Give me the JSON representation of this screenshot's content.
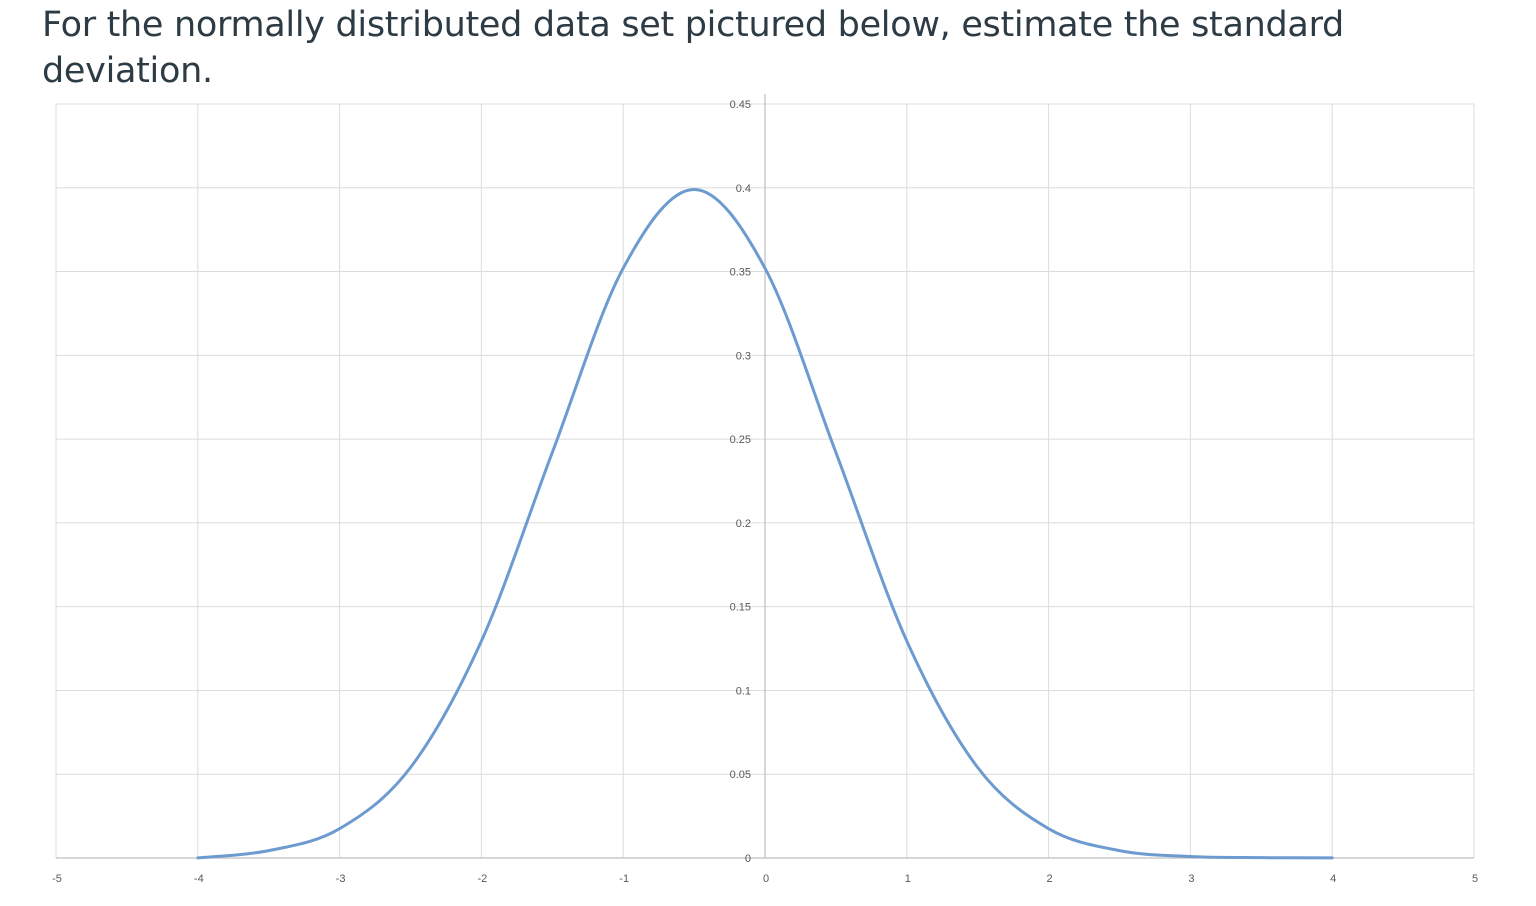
{
  "question": {
    "text": "For the normally distributed data set pictured below, estimate the standard deviation."
  },
  "chart_data": {
    "type": "line",
    "title": "",
    "xlabel": "",
    "ylabel": "",
    "xlim": [
      -5,
      5
    ],
    "ylim": [
      0,
      0.45
    ],
    "x_ticks": [
      -5,
      -4,
      -3,
      -2,
      -1,
      0,
      1,
      2,
      3,
      4,
      5
    ],
    "y_ticks": [
      0,
      0.05,
      0.1,
      0.15,
      0.2,
      0.25,
      0.3,
      0.35,
      0.4,
      0.45
    ],
    "x_tick_labels": [
      "-5",
      "-4",
      "-3",
      "-2",
      "-1",
      "0",
      "1",
      "2",
      "3",
      "4",
      "5"
    ],
    "y_tick_labels": [
      "0",
      "0.05",
      "0.1",
      "0.15",
      "0.2",
      "0.25",
      "0.3",
      "0.35",
      "0.4",
      "0.45"
    ],
    "grid": true,
    "legend": "none",
    "series": [
      {
        "color": "#6d9bd0",
        "x": [
          -4,
          -3.5,
          -3,
          -2.5,
          -2,
          -1.5,
          -1,
          -0.5,
          0,
          0.5,
          1,
          1.5,
          2,
          2.5,
          3,
          3.5,
          4
        ],
        "y": [
          0.0001,
          0.0044,
          0.0175,
          0.054,
          0.1295,
          0.242,
          0.352,
          0.399,
          0.352,
          0.242,
          0.1295,
          0.054,
          0.0175,
          0.0044,
          0.0009,
          0.0002,
          0.0001
        ]
      }
    ]
  }
}
